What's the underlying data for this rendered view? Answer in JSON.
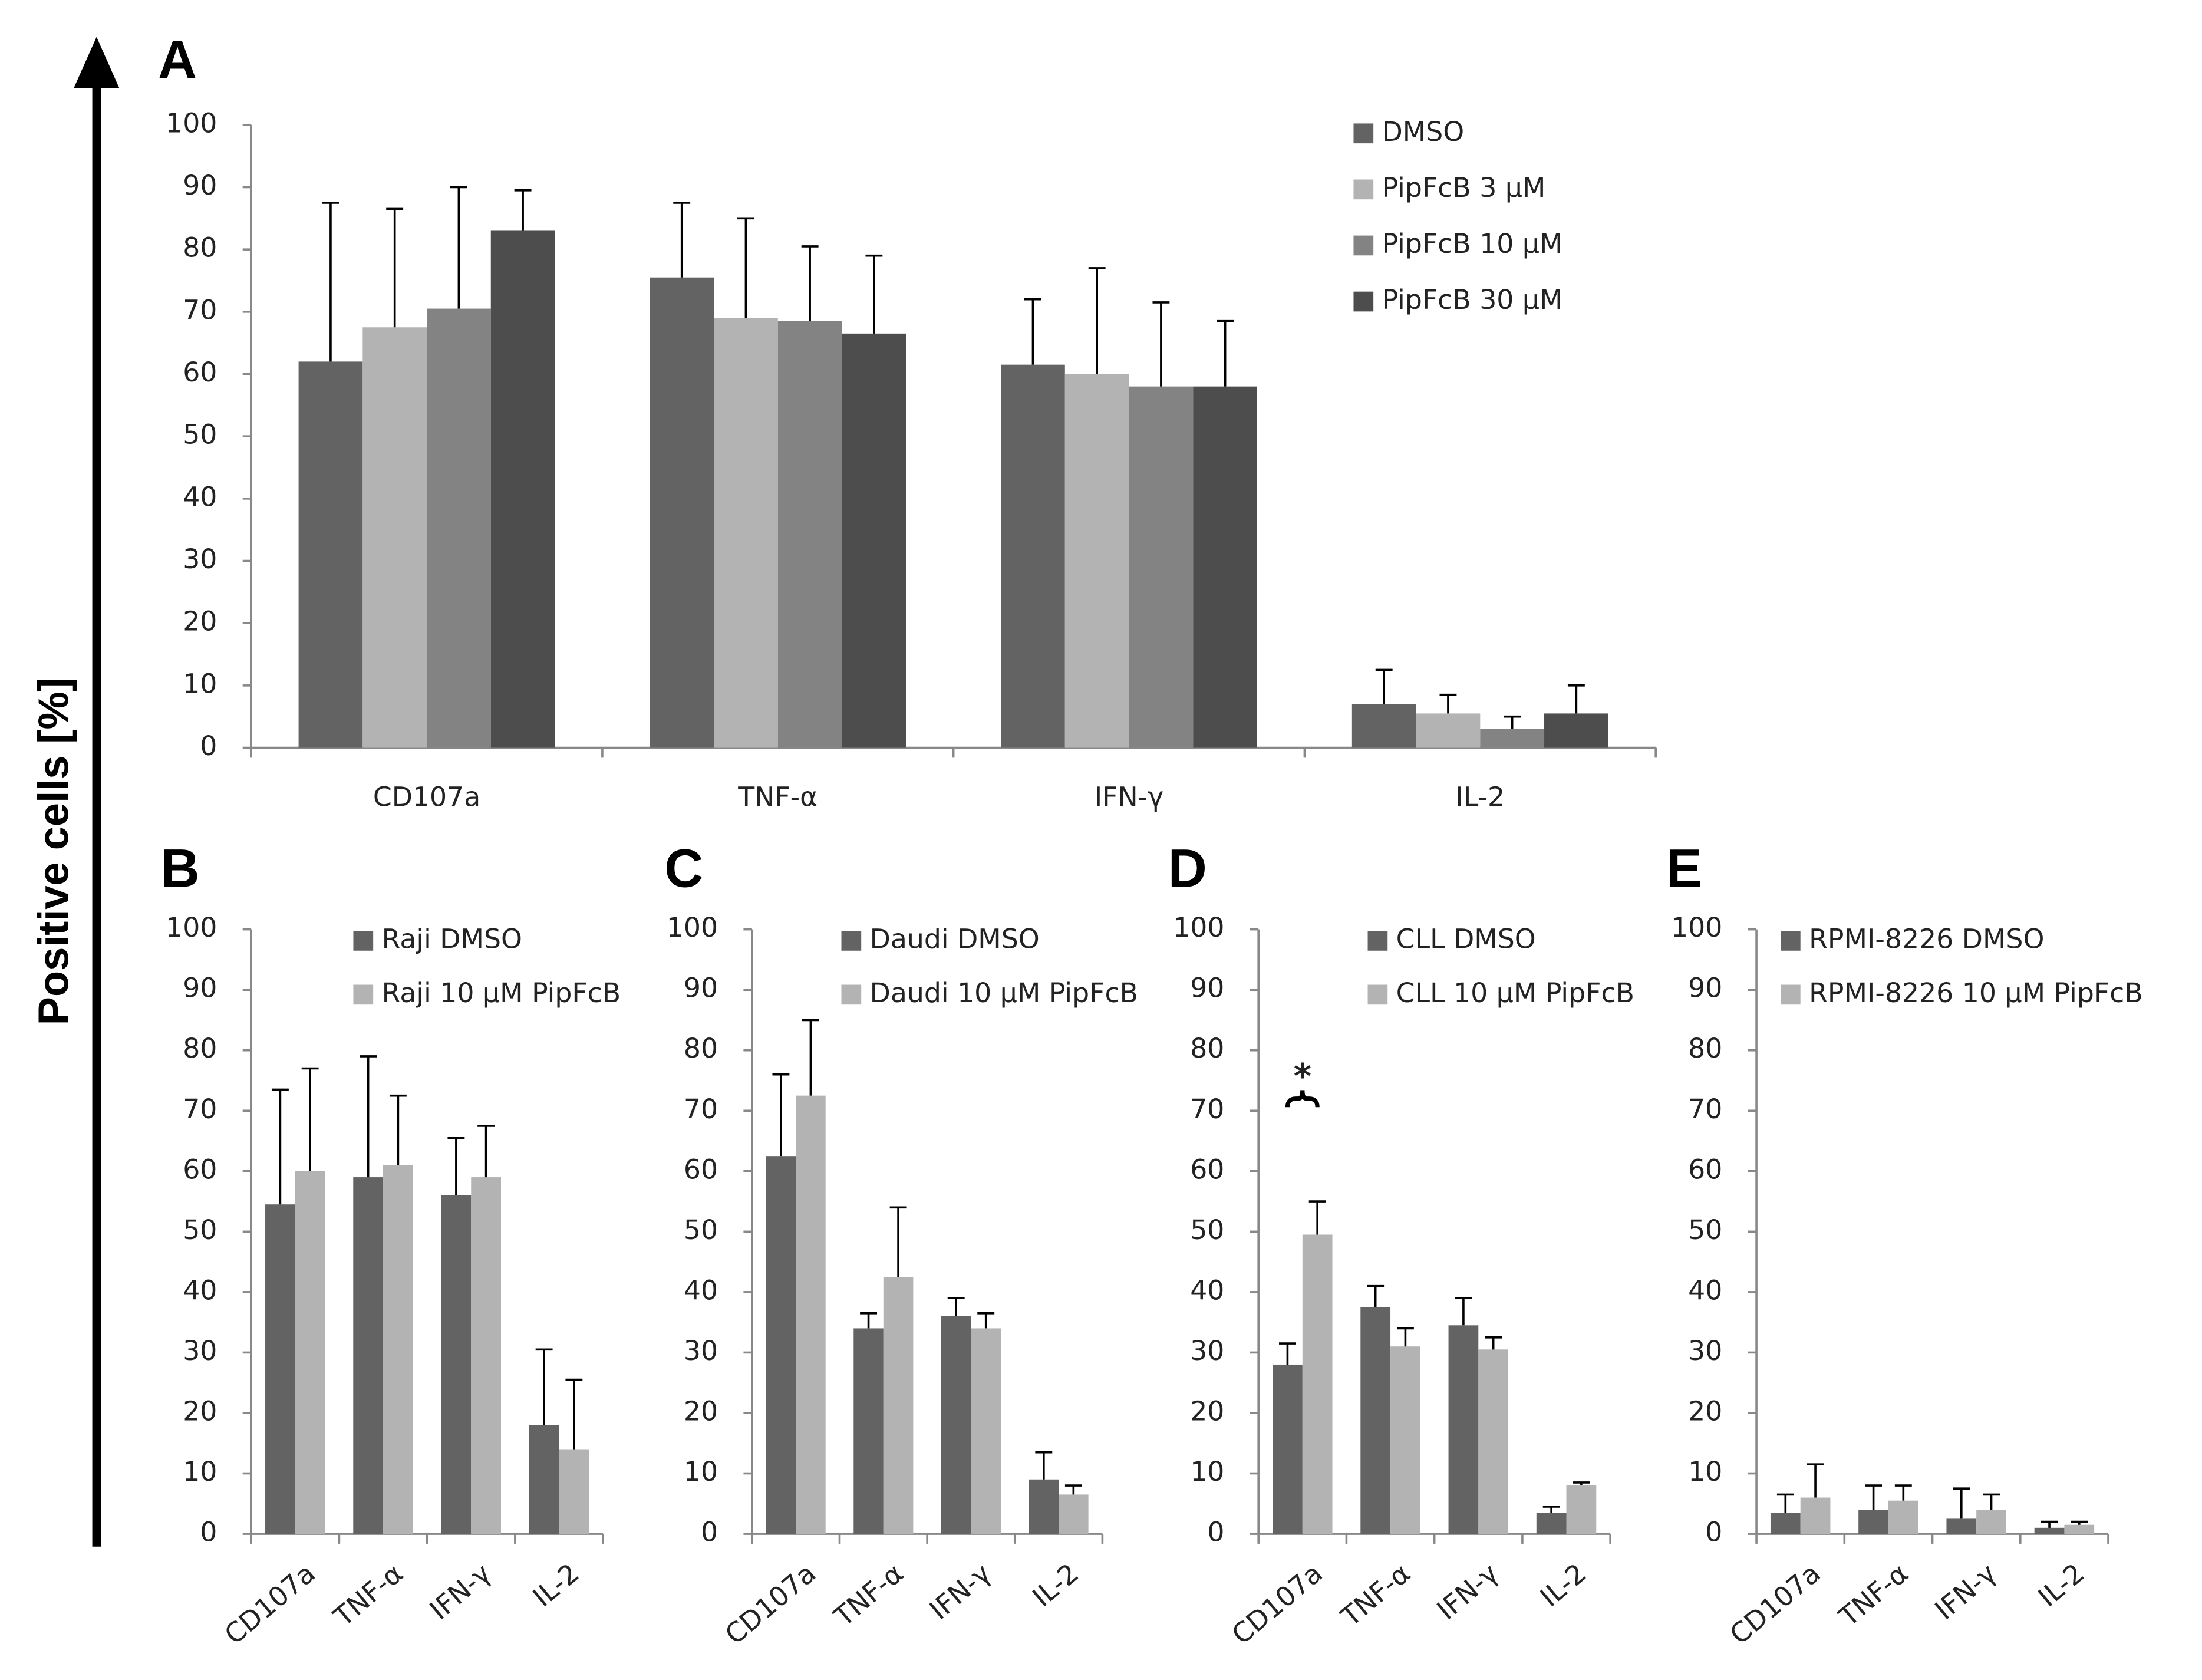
{
  "ylabel": "Positive cells [%]",
  "chart_data": [
    {
      "type": "bar",
      "panel": "A",
      "categories": [
        "CD107a",
        "TNF-α",
        "IFN-γ",
        "IL-2"
      ],
      "ylim": [
        0,
        100
      ],
      "yticks": [
        0,
        10,
        20,
        30,
        40,
        50,
        60,
        70,
        80,
        90,
        100
      ],
      "series": [
        {
          "name": "DMSO",
          "color": "#636363",
          "values": [
            62,
            75.5,
            61.5,
            7
          ],
          "errors": [
            25.5,
            12,
            10.5,
            5.5
          ]
        },
        {
          "name": "PipFcB 3 µM",
          "color": "#b3b3b3",
          "values": [
            67.5,
            69,
            60,
            5.5
          ],
          "errors": [
            19,
            16,
            17,
            3
          ]
        },
        {
          "name": "PipFcB 10 µM",
          "color": "#838383",
          "values": [
            70.5,
            68.5,
            58,
            3
          ],
          "errors": [
            19.5,
            12,
            13.5,
            2
          ]
        },
        {
          "name": "PipFcB 30 µM",
          "color": "#4d4d4d",
          "values": [
            83,
            66.5,
            58,
            5.5
          ],
          "errors": [
            6.5,
            12.5,
            10.5,
            4.5
          ]
        }
      ]
    },
    {
      "type": "bar",
      "panel": "B",
      "categories": [
        "CD107a",
        "TNF-α",
        "IFN-γ",
        "IL-2"
      ],
      "ylim": [
        0,
        100
      ],
      "yticks": [
        0,
        10,
        20,
        30,
        40,
        50,
        60,
        70,
        80,
        90,
        100
      ],
      "series": [
        {
          "name": "Raji DMSO",
          "color": "#636363",
          "values": [
            54.5,
            59,
            56,
            18
          ],
          "errors": [
            19,
            20,
            9.5,
            12.5
          ]
        },
        {
          "name": "Raji 10 µM PipFcB",
          "color": "#b3b3b3",
          "values": [
            60,
            61,
            59,
            14
          ],
          "errors": [
            17,
            11.5,
            8.5,
            11.5
          ]
        }
      ]
    },
    {
      "type": "bar",
      "panel": "C",
      "categories": [
        "CD107a",
        "TNF-α",
        "IFN-γ",
        "IL-2"
      ],
      "ylim": [
        0,
        100
      ],
      "yticks": [
        0,
        10,
        20,
        30,
        40,
        50,
        60,
        70,
        80,
        90,
        100
      ],
      "series": [
        {
          "name": "Daudi DMSO",
          "color": "#636363",
          "values": [
            62.5,
            34,
            36,
            9
          ],
          "errors": [
            13.5,
            2.5,
            3,
            4.5
          ]
        },
        {
          "name": "Daudi 10 µM PipFcB",
          "color": "#b3b3b3",
          "values": [
            72.5,
            42.5,
            34,
            6.5
          ],
          "errors": [
            12.5,
            11.5,
            2.5,
            1.5
          ]
        }
      ]
    },
    {
      "type": "bar",
      "panel": "D",
      "categories": [
        "CD107a",
        "TNF-α",
        "IFN-γ",
        "IL-2"
      ],
      "ylim": [
        0,
        100
      ],
      "yticks": [
        0,
        10,
        20,
        30,
        40,
        50,
        60,
        70,
        80,
        90,
        100
      ],
      "annotation": "*",
      "series": [
        {
          "name": "CLL DMSO",
          "color": "#636363",
          "values": [
            28,
            37.5,
            34.5,
            3.5
          ],
          "errors": [
            3.5,
            3.5,
            4.5,
            1
          ]
        },
        {
          "name": "CLL 10 µM PipFcB",
          "color": "#b3b3b3",
          "values": [
            49.5,
            31,
            30.5,
            8
          ],
          "errors": [
            5.5,
            3,
            2,
            0.5
          ]
        }
      ]
    },
    {
      "type": "bar",
      "panel": "E",
      "categories": [
        "CD107a",
        "TNF-α",
        "IFN-γ",
        "IL-2"
      ],
      "ylim": [
        0,
        100
      ],
      "yticks": [
        0,
        10,
        20,
        30,
        40,
        50,
        60,
        70,
        80,
        90,
        100
      ],
      "series": [
        {
          "name": "RPMI-8226 DMSO",
          "color": "#636363",
          "values": [
            3.5,
            4,
            2.5,
            1
          ],
          "errors": [
            3,
            4,
            5,
            1
          ]
        },
        {
          "name": "RPMI-8226 10 µM PipFcB",
          "color": "#b3b3b3",
          "values": [
            6,
            5.5,
            4,
            1.5
          ],
          "errors": [
            5.5,
            2.5,
            2.5,
            0.5
          ]
        }
      ]
    }
  ]
}
